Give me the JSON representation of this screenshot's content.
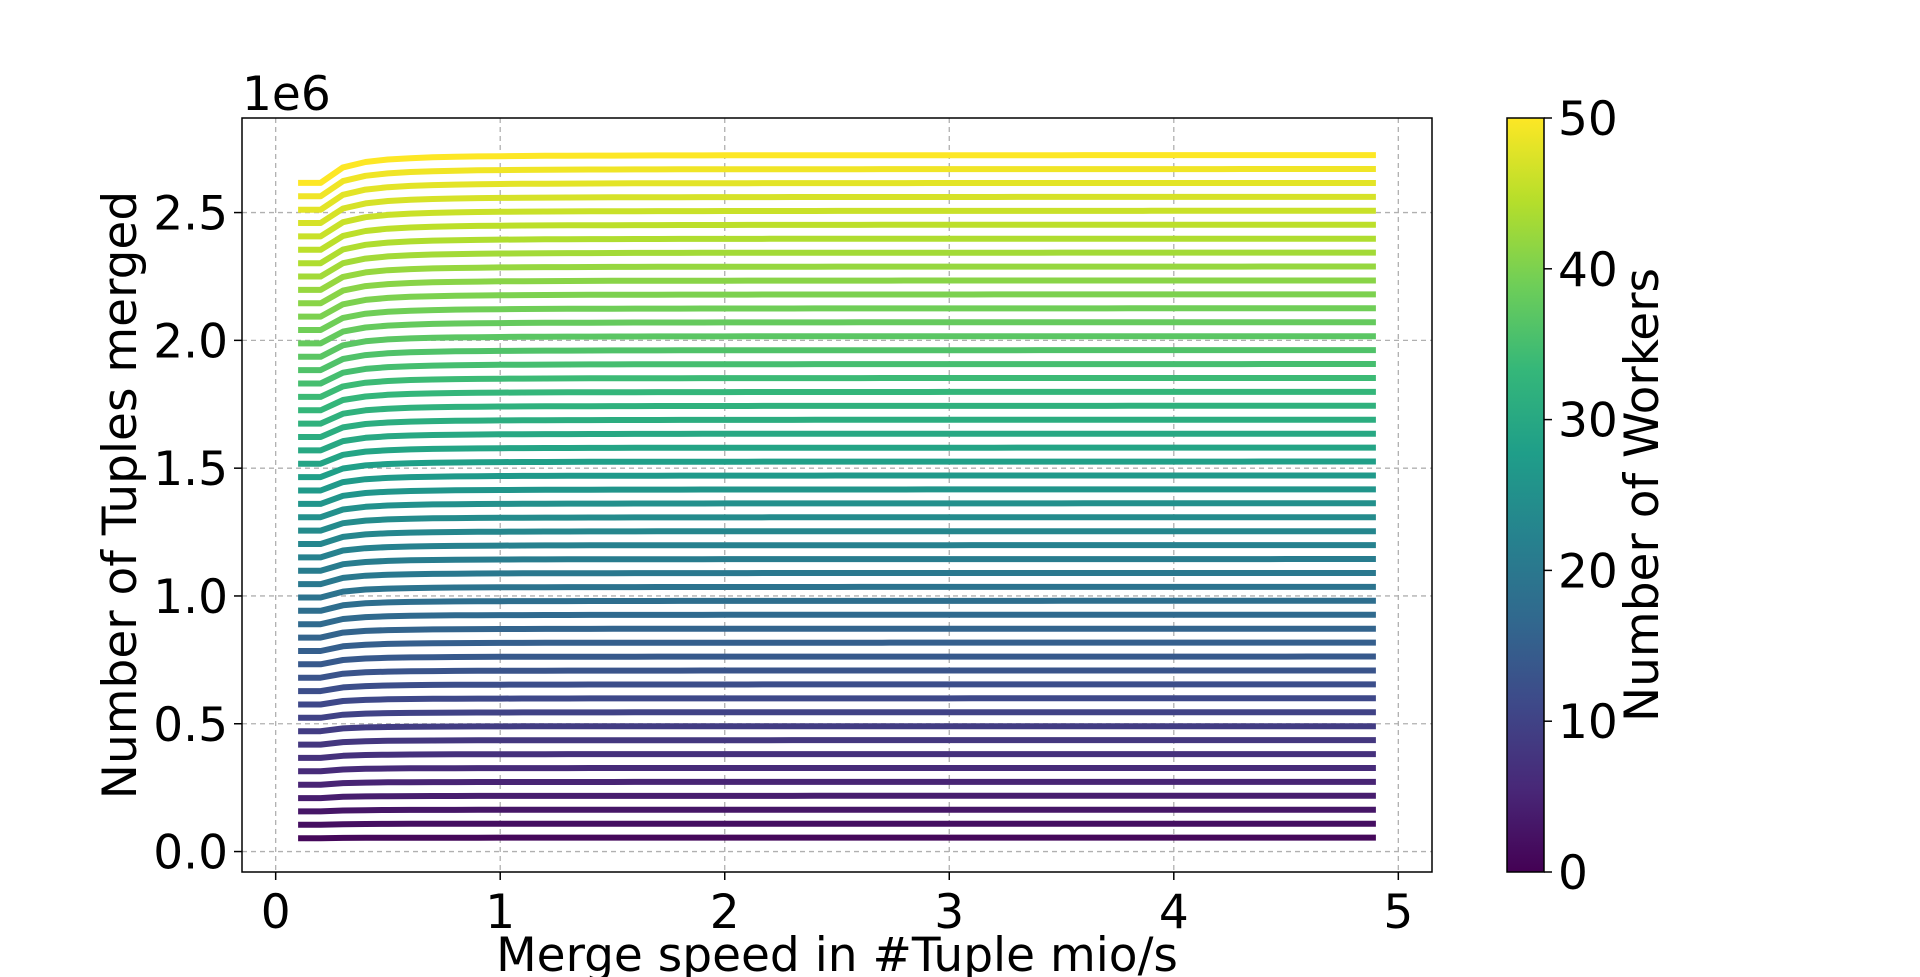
{
  "chart_data": {
    "type": "line",
    "xlabel": "Merge speed in #Tuple mio/s",
    "ylabel": "Number of Tuples merged",
    "y_offset_label": "1e6",
    "xlim": [
      -0.15,
      5.15
    ],
    "ylim": [
      -0.08,
      2.87
    ],
    "x_ticks": [
      0,
      1,
      2,
      3,
      4,
      5
    ],
    "x_tick_labels": [
      "0",
      "1",
      "2",
      "3",
      "4",
      "5"
    ],
    "y_ticks": [
      0.0,
      0.5,
      1.0,
      1.5,
      2.0,
      2.5
    ],
    "y_tick_labels": [
      "0.0",
      "0.5",
      "1.0",
      "1.5",
      "2.0",
      "2.5"
    ],
    "grid": true,
    "series_generator": {
      "workers_from": 1,
      "workers_to": 50,
      "x_from": 0.1,
      "x_to": 4.9,
      "x_step": 0.1,
      "value_per_worker_at_plateau": 0.0545,
      "note_for_values": "y (in 1e6 tuples) = workers × 0.0545 × (1 − 0.05 / x^2 damped); first point slightly lower"
    },
    "colorbar": {
      "label": "Number of Workers",
      "colormap": "viridis",
      "range": [
        0,
        50
      ],
      "ticks": [
        0,
        10,
        20,
        30,
        40,
        50
      ],
      "tick_labels": [
        "0",
        "10",
        "20",
        "30",
        "40",
        "50"
      ]
    },
    "colormap_stops": [
      "#440154",
      "#482878",
      "#3e4989",
      "#31688e",
      "#26828e",
      "#1f9e89",
      "#35b779",
      "#6ece58",
      "#b5de2b",
      "#fde725"
    ]
  }
}
